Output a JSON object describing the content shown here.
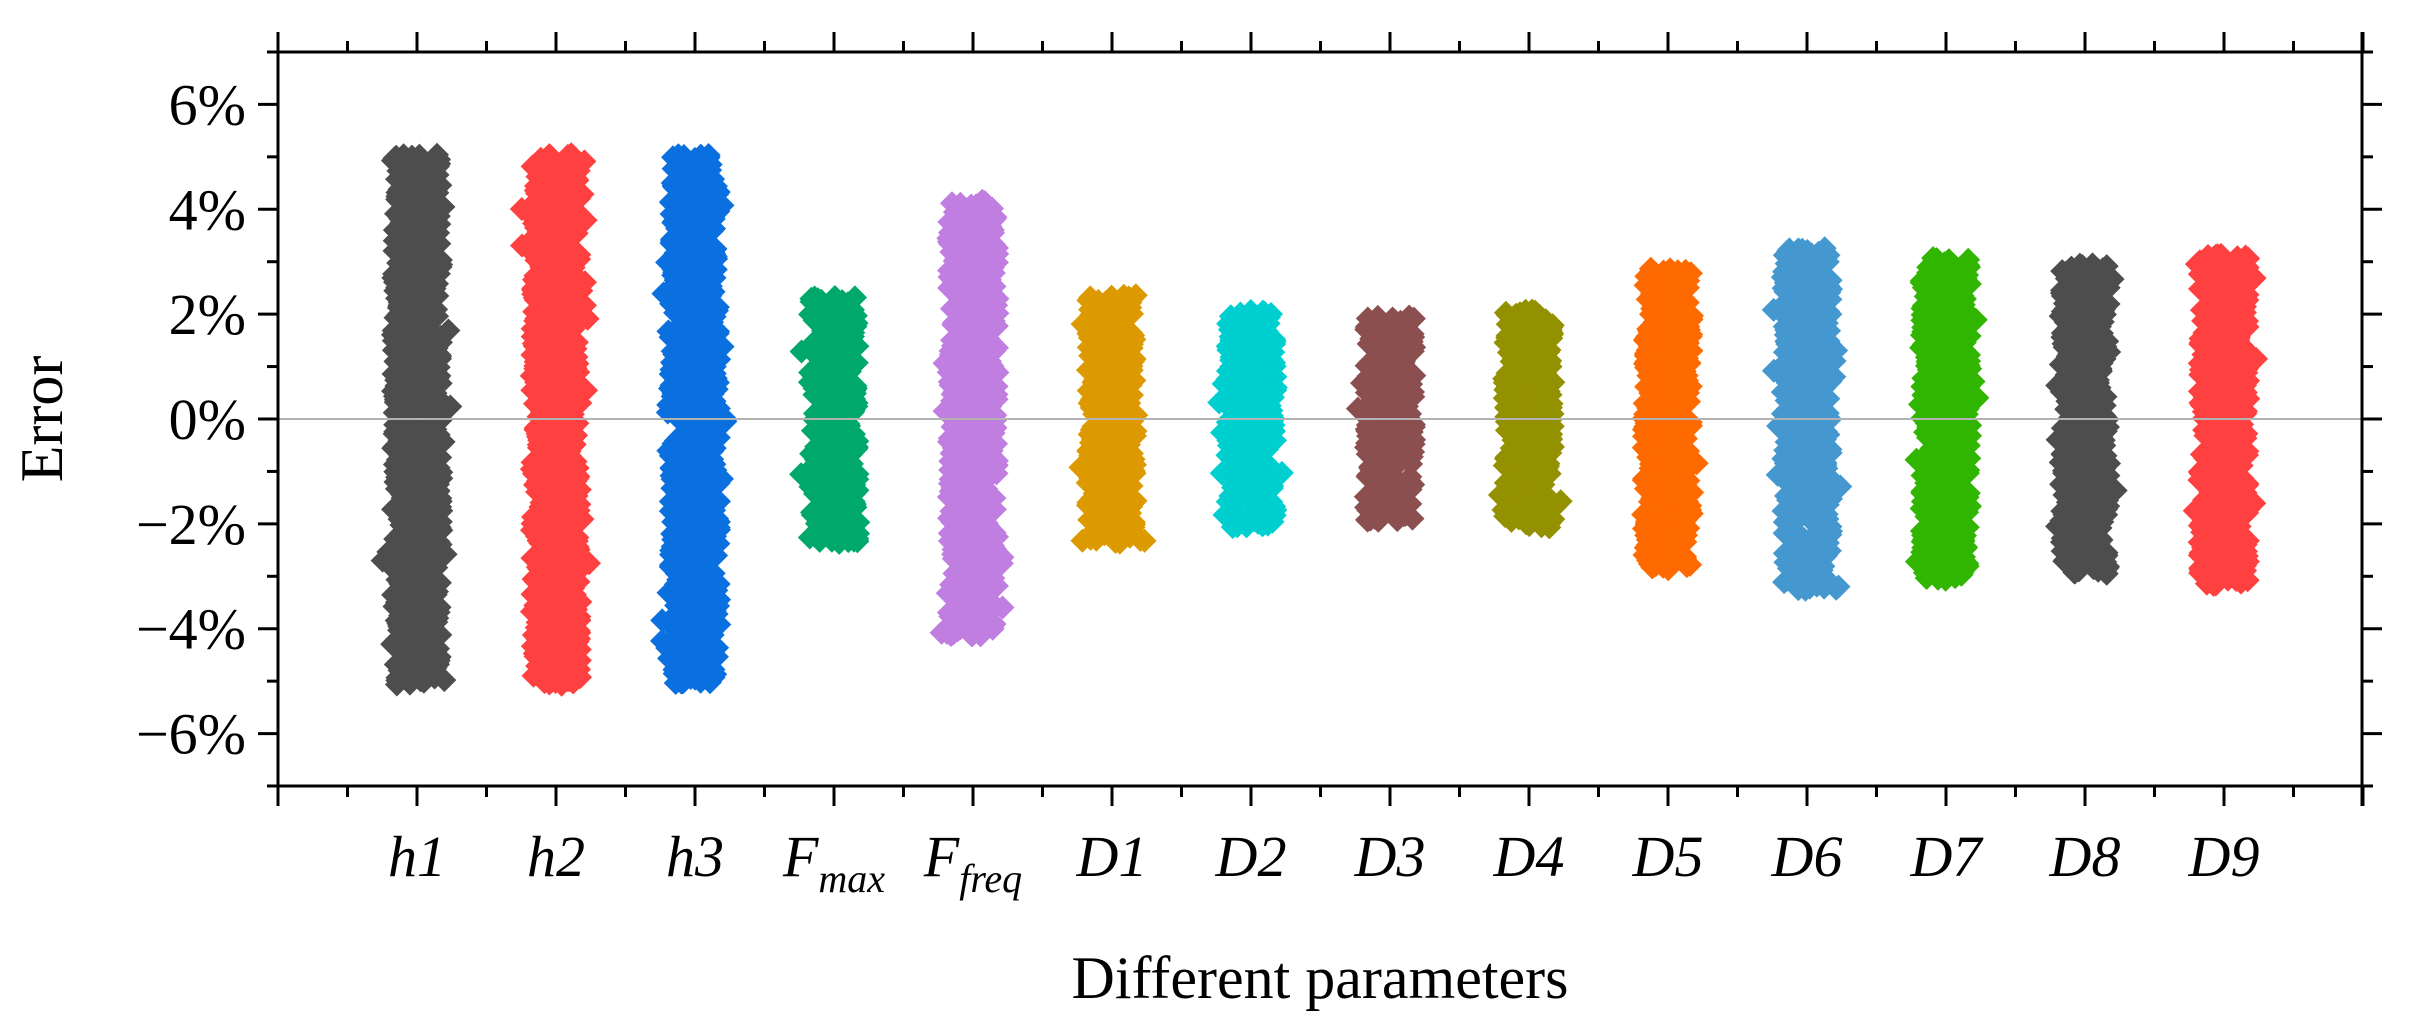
{
  "chart_data": {
    "type": "scatter",
    "xlabel": "Different parameters",
    "ylabel": "Error",
    "ylim": [
      -7,
      7
    ],
    "yticks": [
      -6,
      -4,
      -2,
      0,
      2,
      4,
      6
    ],
    "ytick_labels": [
      "−6%",
      "−4%",
      "−2%",
      "0%",
      "2%",
      "4%",
      "6%"
    ],
    "y_unit": "%",
    "zero_line": true,
    "grid": false,
    "legend": "none",
    "marker": "diamond",
    "categories": [
      {
        "base": "h",
        "sub": "",
        "suffix": "1",
        "label": "h1"
      },
      {
        "base": "h",
        "sub": "",
        "suffix": "2",
        "label": "h2"
      },
      {
        "base": "h",
        "sub": "",
        "suffix": "3",
        "label": "h3"
      },
      {
        "base": "F",
        "sub": "max",
        "suffix": "",
        "label": "Fmax"
      },
      {
        "base": "F",
        "sub": "freq",
        "suffix": "",
        "label": "Ffreq"
      },
      {
        "base": "D",
        "sub": "",
        "suffix": "1",
        "label": "D1"
      },
      {
        "base": "D",
        "sub": "",
        "suffix": "2",
        "label": "D2"
      },
      {
        "base": "D",
        "sub": "",
        "suffix": "3",
        "label": "D3"
      },
      {
        "base": "D",
        "sub": "",
        "suffix": "4",
        "label": "D4"
      },
      {
        "base": "D",
        "sub": "",
        "suffix": "5",
        "label": "D5"
      },
      {
        "base": "D",
        "sub": "",
        "suffix": "6",
        "label": "D6"
      },
      {
        "base": "D",
        "sub": "",
        "suffix": "7",
        "label": "D7"
      },
      {
        "base": "D",
        "sub": "",
        "suffix": "8",
        "label": "D8"
      },
      {
        "base": "D",
        "sub": "",
        "suffix": "9",
        "label": "D9"
      }
    ],
    "series": [
      {
        "category": "h1",
        "color": "#4d4d4d",
        "min": -5.2,
        "max": 5.2
      },
      {
        "category": "h2",
        "color": "#ff4040",
        "min": -5.2,
        "max": 5.2
      },
      {
        "category": "h3",
        "color": "#0a6fdf",
        "min": -5.2,
        "max": 5.2
      },
      {
        "category": "Fmax",
        "color": "#00a86b",
        "min": -2.5,
        "max": 2.5
      },
      {
        "category": "Ffreq",
        "color": "#c07ee0",
        "min": -4.3,
        "max": 4.3
      },
      {
        "category": "D1",
        "color": "#dd9a00",
        "min": -2.5,
        "max": 2.5
      },
      {
        "category": "D2",
        "color": "#00cfcf",
        "min": -2.2,
        "max": 2.2
      },
      {
        "category": "D3",
        "color": "#8b4f4f",
        "min": -2.1,
        "max": 2.1
      },
      {
        "category": "D4",
        "color": "#949100",
        "min": -2.2,
        "max": 2.2
      },
      {
        "category": "D5",
        "color": "#ff6a00",
        "min": -3.0,
        "max": 3.0
      },
      {
        "category": "D6",
        "color": "#4498cf",
        "min": -3.4,
        "max": 3.4
      },
      {
        "category": "D7",
        "color": "#30b500",
        "min": -3.2,
        "max": 3.2
      },
      {
        "category": "D8",
        "color": "#4d4d4d",
        "min": -3.1,
        "max": 3.1
      },
      {
        "category": "D9",
        "color": "#ff4040",
        "min": -3.3,
        "max": 3.3
      }
    ]
  }
}
